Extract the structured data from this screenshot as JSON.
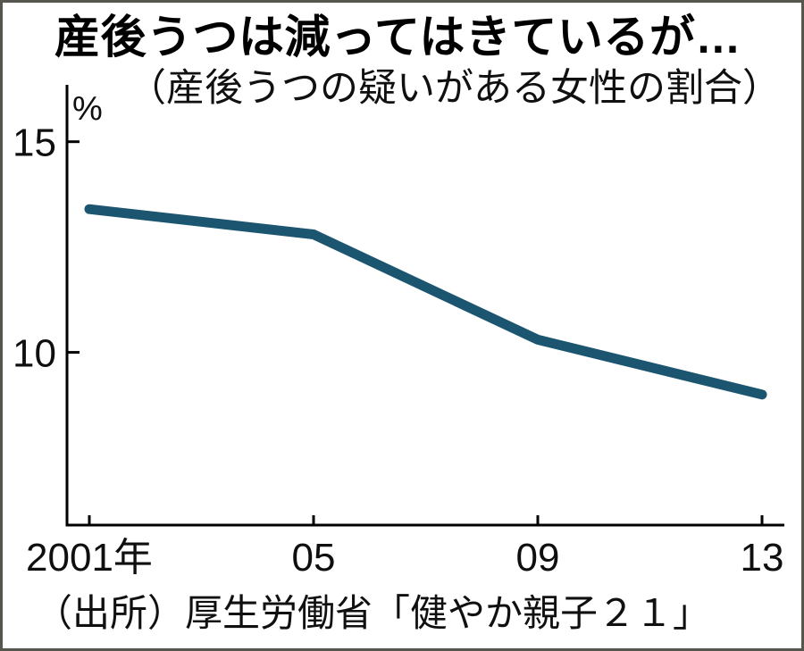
{
  "page": {
    "background": "#ffffff",
    "border_color": "#56564e"
  },
  "header": {
    "title": "産後うつは減ってはきているが…",
    "subtitle": "（産後うつの疑いがある女性の割合）"
  },
  "footer": {
    "source": "（出所）厚生労働省「健やか親子２１」"
  },
  "chart_data": {
    "type": "line",
    "title": "産後うつは減ってはきているが…",
    "subtitle": "（産後うつの疑いがある女性の割合）",
    "unit_label": "%",
    "x": [
      2001,
      2005,
      2009,
      2013
    ],
    "x_tick_labels": [
      "2001年",
      "05",
      "09",
      "13"
    ],
    "series": [
      {
        "name": "産後うつの疑いがある女性の割合",
        "values": [
          13.4,
          12.8,
          10.3,
          9.0
        ]
      }
    ],
    "y_ticks": [
      15,
      10
    ],
    "y_tick_labels": [
      "15",
      "10"
    ],
    "ylim": [
      5.9,
      16.35
    ],
    "xlabel": "",
    "ylabel": "%",
    "grid": false,
    "legend": "none",
    "line_color": "#1b5570",
    "axis_color": "#000000"
  }
}
